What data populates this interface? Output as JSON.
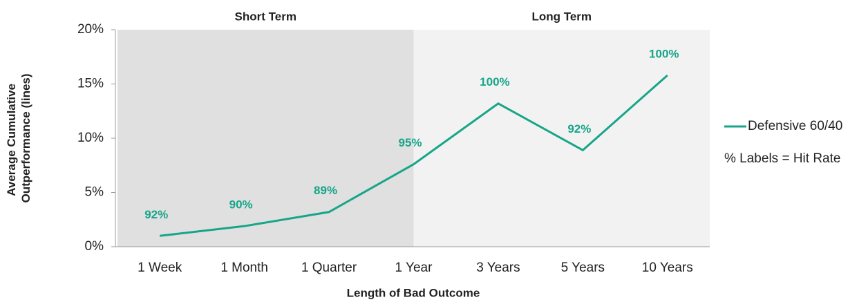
{
  "chart_data": {
    "type": "line",
    "x_label": "Length of Bad Outcome",
    "y_label": [
      "Average Cumulative",
      "Outperformance (lines)"
    ],
    "regions": [
      "Short Term",
      "Long Term"
    ],
    "categories": [
      "1 Week",
      "1 Month",
      "1 Quarter",
      "1 Year",
      "3 Years",
      "5 Years",
      "10 Years"
    ],
    "series": [
      {
        "name": "Defensive 60/40",
        "color": "#17a589",
        "values": [
          1.0,
          1.9,
          3.2,
          7.6,
          13.2,
          8.9,
          15.8
        ]
      }
    ],
    "hit_rate_labels": [
      "92%",
      "90%",
      "89%",
      "95%",
      "100%",
      "92%",
      "100%"
    ],
    "note": "% Labels = Hit Rate",
    "ylim": [
      0,
      20
    ],
    "yticks": [
      {
        "value": 0,
        "label": "0%"
      },
      {
        "value": 5,
        "label": "5%"
      },
      {
        "value": 10,
        "label": "10%"
      },
      {
        "value": 15,
        "label": "15%"
      },
      {
        "value": 20,
        "label": "20%"
      }
    ],
    "legend": "right"
  }
}
